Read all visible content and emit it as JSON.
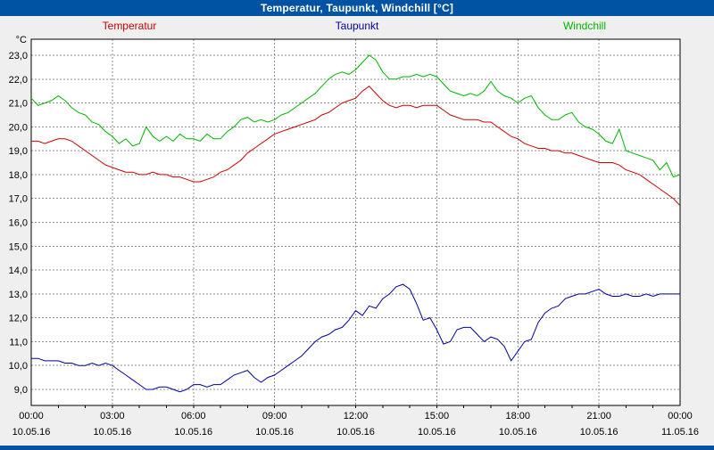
{
  "window": {
    "title": "Temperatur, Taupunkt, Windchill [°C]"
  },
  "colors": {
    "titlebar": "#0052a2",
    "chart_background": "#efefef",
    "plot_background": "#ffffff",
    "grid": "#909090",
    "temperatur": "#cc0000",
    "taupunkt": "#0000a0",
    "windchill": "#00b400"
  },
  "chart_data": {
    "type": "line",
    "title": "Temperatur, Taupunkt, Windchill [°C]",
    "y_unit_label": "°C",
    "ylim": [
      9,
      23
    ],
    "grid": true,
    "legend_position": "top",
    "sample_interval_minutes": 15,
    "x_range_hours": [
      0,
      24
    ],
    "y_tick_labels": [
      "23,0",
      "22,0",
      "21,0",
      "20,0",
      "19,0",
      "18,0",
      "17,0",
      "16,0",
      "15,0",
      "14,0",
      "13,0",
      "12,0",
      "11,0",
      "10,0",
      "9,0"
    ],
    "x_hour_labels": [
      "00:00",
      "03:00",
      "06:00",
      "09:00",
      "12:00",
      "15:00",
      "18:00",
      "21:00",
      "00:00"
    ],
    "x_date_labels": [
      "10.05.16",
      "10.05.16",
      "10.05.16",
      "10.05.16",
      "10.05.16",
      "10.05.16",
      "10.05.16",
      "10.05.16",
      "11.05.16"
    ],
    "series": [
      {
        "name": "Temperatur",
        "color": "#cc0000",
        "values": [
          19.4,
          19.4,
          19.3,
          19.4,
          19.5,
          19.5,
          19.4,
          19.2,
          19.0,
          18.8,
          18.6,
          18.4,
          18.3,
          18.2,
          18.1,
          18.1,
          18.0,
          18.0,
          18.1,
          18.0,
          18.0,
          17.9,
          17.9,
          17.8,
          17.7,
          17.7,
          17.8,
          17.9,
          18.1,
          18.2,
          18.4,
          18.6,
          18.9,
          19.1,
          19.3,
          19.5,
          19.7,
          19.8,
          19.9,
          20.0,
          20.1,
          20.2,
          20.3,
          20.5,
          20.6,
          20.8,
          21.0,
          21.1,
          21.2,
          21.5,
          21.7,
          21.4,
          21.1,
          20.9,
          20.8,
          20.9,
          20.9,
          20.8,
          20.9,
          20.9,
          20.9,
          20.7,
          20.5,
          20.4,
          20.3,
          20.3,
          20.3,
          20.2,
          20.2,
          20.0,
          19.8,
          19.6,
          19.5,
          19.3,
          19.2,
          19.1,
          19.1,
          19.0,
          19.0,
          18.9,
          18.9,
          18.8,
          18.7,
          18.6,
          18.5,
          18.5,
          18.5,
          18.4,
          18.2,
          18.1,
          18.0,
          17.8,
          17.6,
          17.4,
          17.2,
          17.0,
          16.7
        ]
      },
      {
        "name": "Taupunkt",
        "color": "#0000a0",
        "values": [
          10.3,
          10.3,
          10.2,
          10.2,
          10.2,
          10.1,
          10.1,
          10.0,
          10.0,
          10.1,
          10.0,
          10.1,
          10.0,
          9.8,
          9.6,
          9.4,
          9.2,
          9.0,
          9.0,
          9.1,
          9.1,
          9.0,
          8.9,
          9.0,
          9.2,
          9.2,
          9.1,
          9.2,
          9.2,
          9.4,
          9.6,
          9.7,
          9.8,
          9.5,
          9.3,
          9.5,
          9.6,
          9.8,
          10.0,
          10.2,
          10.4,
          10.7,
          11.0,
          11.2,
          11.3,
          11.5,
          11.6,
          11.9,
          12.3,
          12.1,
          12.5,
          12.4,
          12.8,
          13.0,
          13.3,
          13.4,
          13.2,
          12.6,
          11.9,
          12.0,
          11.5,
          10.9,
          11.0,
          11.5,
          11.6,
          11.6,
          11.3,
          11.0,
          11.2,
          11.1,
          10.8,
          10.2,
          10.6,
          11.0,
          11.1,
          11.8,
          12.2,
          12.4,
          12.5,
          12.8,
          12.9,
          13.0,
          13.0,
          13.1,
          13.2,
          13.0,
          12.9,
          12.9,
          13.0,
          12.9,
          12.9,
          13.0,
          12.9,
          13.0,
          13.0,
          13.0,
          13.0
        ]
      },
      {
        "name": "Windchill",
        "color": "#00b400",
        "values": [
          21.2,
          20.9,
          21.0,
          21.1,
          21.3,
          21.1,
          20.8,
          20.6,
          20.5,
          20.2,
          20.1,
          19.8,
          19.6,
          19.3,
          19.5,
          19.2,
          19.3,
          20.0,
          19.6,
          19.4,
          19.6,
          19.4,
          19.7,
          19.5,
          19.5,
          19.4,
          19.7,
          19.5,
          19.5,
          19.8,
          20.0,
          20.3,
          20.4,
          20.2,
          20.3,
          20.2,
          20.3,
          20.5,
          20.6,
          20.8,
          21.0,
          21.2,
          21.4,
          21.7,
          22.0,
          22.2,
          22.3,
          22.2,
          22.4,
          22.7,
          23.0,
          22.8,
          22.3,
          22.0,
          22.0,
          22.1,
          22.1,
          22.2,
          22.1,
          22.2,
          22.1,
          21.8,
          21.5,
          21.4,
          21.3,
          21.4,
          21.3,
          21.5,
          21.9,
          21.5,
          21.3,
          21.2,
          21.0,
          21.2,
          21.3,
          20.8,
          20.5,
          20.3,
          20.3,
          20.5,
          20.6,
          20.2,
          20.0,
          19.9,
          19.7,
          19.4,
          19.3,
          19.9,
          19.0,
          18.9,
          18.8,
          18.7,
          18.6,
          18.2,
          18.5,
          17.9,
          18.0
        ]
      }
    ]
  }
}
